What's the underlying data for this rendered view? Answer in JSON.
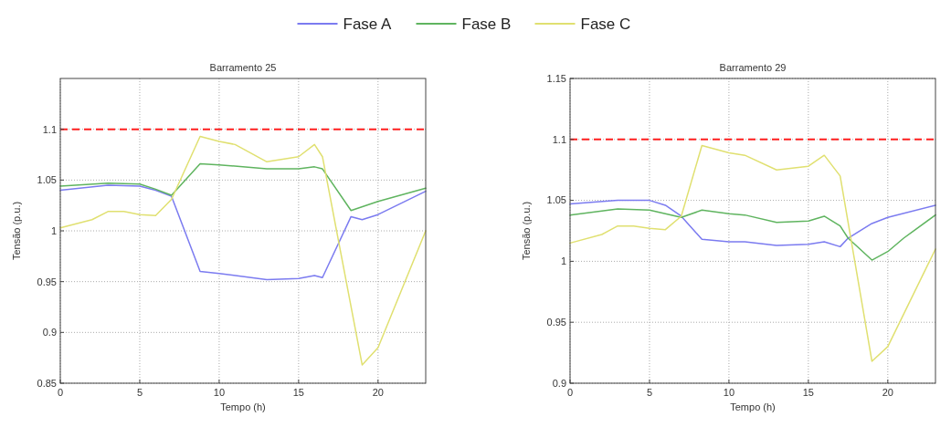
{
  "chart_data": [
    {
      "type": "line",
      "title": "Barramento 25",
      "xlabel": "Tempo (h)",
      "ylabel": "Tensão (p.u.)",
      "xlim": [
        0,
        23
      ],
      "xticks": [
        0,
        5,
        10,
        15,
        20
      ],
      "ylim": [
        0.85,
        1.15
      ],
      "yticks": [
        0.85,
        0.9,
        0.95,
        1,
        1.05,
        1.1
      ],
      "grid": true,
      "legend": "top",
      "line_style": "solid",
      "marker": "none",
      "ref_lines": [
        {
          "axis": "y",
          "value": 1.1,
          "color": "#ff2020",
          "line_style": "dashed"
        }
      ],
      "series": [
        {
          "name": "Fase A",
          "color": "#7b7bf0",
          "x": [
            0,
            3,
            5,
            6,
            7,
            8.8,
            10,
            13,
            15,
            16,
            16.5,
            18.3,
            19,
            20,
            23
          ],
          "values": [
            1.04,
            1.045,
            1.044,
            1.04,
            1.034,
            0.96,
            0.958,
            0.952,
            0.953,
            0.956,
            0.954,
            1.014,
            1.011,
            1.016,
            1.039
          ]
        },
        {
          "name": "Fase B",
          "color": "#5fb45f",
          "x": [
            0,
            3,
            5,
            6,
            7,
            8.8,
            10,
            13,
            15,
            16,
            16.5,
            18.3,
            20,
            23
          ],
          "values": [
            1.044,
            1.047,
            1.046,
            1.041,
            1.035,
            1.066,
            1.065,
            1.061,
            1.061,
            1.063,
            1.061,
            1.02,
            1.029,
            1.042
          ]
        },
        {
          "name": "Fase C",
          "color": "#e0e070",
          "x": [
            0,
            2,
            3,
            4,
            5,
            6,
            7,
            8.8,
            10,
            11,
            13,
            15,
            16,
            16.5,
            19,
            20,
            23
          ],
          "values": [
            1.003,
            1.011,
            1.019,
            1.019,
            1.016,
            1.015,
            1.031,
            1.093,
            1.088,
            1.085,
            1.068,
            1.073,
            1.085,
            1.073,
            0.868,
            0.885,
            1.0
          ]
        }
      ]
    },
    {
      "type": "line",
      "title": "Barramento 29",
      "xlabel": "Tempo (h)",
      "ylabel": "Tensão (p.u.)",
      "xlim": [
        0,
        23
      ],
      "xticks": [
        0,
        5,
        10,
        15,
        20
      ],
      "ylim": [
        0.9,
        1.15
      ],
      "yticks": [
        0.9,
        0.95,
        1,
        1.05,
        1.1,
        1.15
      ],
      "grid": true,
      "line_style": "solid",
      "marker": "none",
      "ref_lines": [
        {
          "axis": "y",
          "value": 1.1,
          "color": "#ff2020",
          "line_style": "dashed"
        }
      ],
      "series": [
        {
          "color": "#7b7bf0",
          "x": [
            0,
            3,
            5,
            6,
            7,
            8.3,
            10,
            11,
            13,
            15,
            16,
            17,
            17.5,
            19,
            20,
            23
          ],
          "values": [
            1.047,
            1.05,
            1.05,
            1.046,
            1.037,
            1.018,
            1.016,
            1.016,
            1.013,
            1.014,
            1.016,
            1.012,
            1.019,
            1.031,
            1.036,
            1.046
          ]
        },
        {
          "color": "#5fb45f",
          "x": [
            0,
            3,
            5,
            7,
            8.3,
            10,
            11,
            13,
            15,
            16,
            17,
            17.5,
            19,
            20,
            21,
            23
          ],
          "values": [
            1.038,
            1.043,
            1.042,
            1.036,
            1.042,
            1.039,
            1.038,
            1.032,
            1.033,
            1.037,
            1.029,
            1.019,
            1.001,
            1.008,
            1.019,
            1.038
          ]
        },
        {
          "color": "#e0e070",
          "x": [
            0,
            2,
            3,
            4,
            5,
            6,
            7,
            8.3,
            10,
            11,
            13,
            15,
            16,
            17,
            19,
            20,
            23
          ],
          "values": [
            1.015,
            1.022,
            1.029,
            1.029,
            1.027,
            1.026,
            1.037,
            1.095,
            1.089,
            1.087,
            1.075,
            1.078,
            1.087,
            1.07,
            0.918,
            0.93,
            1.01
          ]
        }
      ]
    }
  ]
}
